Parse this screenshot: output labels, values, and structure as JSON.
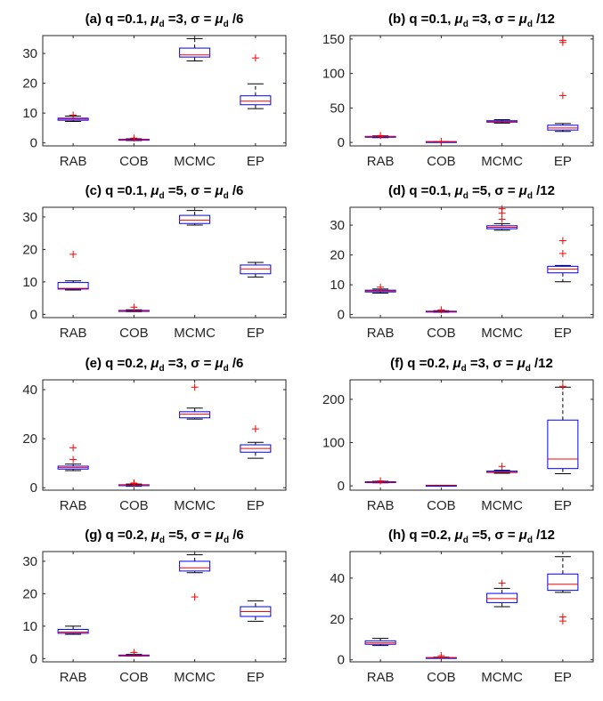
{
  "chart_data": [
    {
      "type": "box",
      "title_prefix": "(a) q =0.1, ",
      "title_mu": "μ",
      "title_mu_sub": "d",
      "title_mid": " =3, σ = ",
      "title_suffix": " /6",
      "categories": [
        "RAB",
        "COB",
        "MCMC",
        "EP"
      ],
      "ylim": [
        -1,
        36
      ],
      "yticks": [
        0,
        10,
        20,
        30
      ],
      "boxes": [
        {
          "low": 7.2,
          "q1": 7.6,
          "median": 8.0,
          "q3": 8.3,
          "high": 9.0,
          "outliers": [
            9.3
          ]
        },
        {
          "low": 0.8,
          "q1": 1.0,
          "median": 1.1,
          "q3": 1.2,
          "high": 1.4,
          "outliers": [
            1.6
          ]
        },
        {
          "low": 27.5,
          "q1": 28.8,
          "median": 29.5,
          "q3": 31.8,
          "high": 35.0,
          "outliers": []
        },
        {
          "low": 11.5,
          "q1": 12.8,
          "median": 14.0,
          "q3": 15.8,
          "high": 19.8,
          "outliers": [
            28.5
          ]
        }
      ]
    },
    {
      "type": "box",
      "title_prefix": "(b) q =0.1, ",
      "title_mu": "μ",
      "title_mu_sub": "d",
      "title_mid": " =3, σ = ",
      "title_suffix": " /12",
      "categories": [
        "RAB",
        "COB",
        "MCMC",
        "EP"
      ],
      "ylim": [
        -5,
        155
      ],
      "yticks": [
        0,
        50,
        100,
        150
      ],
      "boxes": [
        {
          "low": 7.0,
          "q1": 7.8,
          "median": 8.3,
          "q3": 8.8,
          "high": 9.5,
          "outliers": [
            10.0
          ]
        },
        {
          "low": 0.8,
          "q1": 1.0,
          "median": 1.1,
          "q3": 1.2,
          "high": 1.3,
          "outliers": [
            1.5
          ]
        },
        {
          "low": 28.0,
          "q1": 29.5,
          "median": 30.5,
          "q3": 31.5,
          "high": 33.0,
          "outliers": []
        },
        {
          "low": 16.0,
          "q1": 18.0,
          "median": 21.0,
          "q3": 25.0,
          "high": 27.5,
          "outliers": [
            68,
            145,
            148
          ]
        }
      ]
    },
    {
      "type": "box",
      "title_prefix": "(c) q =0.1, ",
      "title_mu": "μ",
      "title_mu_sub": "d",
      "title_mid": " =5, σ = ",
      "title_suffix": " /6",
      "categories": [
        "RAB",
        "COB",
        "MCMC",
        "EP"
      ],
      "ylim": [
        -1,
        33
      ],
      "yticks": [
        0,
        10,
        20,
        30
      ],
      "boxes": [
        {
          "low": 7.5,
          "q1": 7.8,
          "median": 8.0,
          "q3": 9.8,
          "high": 10.3,
          "outliers": [
            18.5
          ]
        },
        {
          "low": 0.8,
          "q1": 0.9,
          "median": 1.0,
          "q3": 1.2,
          "high": 1.4,
          "outliers": [
            2.2
          ]
        },
        {
          "low": 27.5,
          "q1": 28.0,
          "median": 29.0,
          "q3": 30.5,
          "high": 32.0,
          "outliers": []
        },
        {
          "low": 11.5,
          "q1": 12.5,
          "median": 14.0,
          "q3": 15.2,
          "high": 16.0,
          "outliers": []
        }
      ]
    },
    {
      "type": "box",
      "title_prefix": "(d) q =0.1, ",
      "title_mu": "μ",
      "title_mu_sub": "d",
      "title_mid": " =5, σ = ",
      "title_suffix": " /12",
      "categories": [
        "RAB",
        "COB",
        "MCMC",
        "EP"
      ],
      "ylim": [
        -1,
        36
      ],
      "yticks": [
        0,
        10,
        20,
        30
      ],
      "boxes": [
        {
          "low": 7.2,
          "q1": 7.6,
          "median": 7.9,
          "q3": 8.2,
          "high": 8.6,
          "outliers": [
            9.2
          ]
        },
        {
          "low": 0.8,
          "q1": 0.95,
          "median": 1.05,
          "q3": 1.15,
          "high": 1.3,
          "outliers": [
            1.6
          ]
        },
        {
          "low": 28.3,
          "q1": 28.8,
          "median": 29.3,
          "q3": 29.8,
          "high": 30.5,
          "outliers": [
            32.0,
            34.0,
            35.5
          ]
        },
        {
          "low": 11.0,
          "q1": 14.0,
          "median": 15.3,
          "q3": 16.2,
          "high": 16.5,
          "outliers": [
            20.5,
            24.8
          ]
        }
      ]
    },
    {
      "type": "box",
      "title_prefix": "(e) q =0.2, ",
      "title_mu": "μ",
      "title_mu_sub": "d",
      "title_mid": " =3, σ = ",
      "title_suffix": " /6",
      "categories": [
        "RAB",
        "COB",
        "MCMC",
        "EP"
      ],
      "ylim": [
        -1,
        44
      ],
      "yticks": [
        0,
        20,
        40
      ],
      "boxes": [
        {
          "low": 7.0,
          "q1": 7.6,
          "median": 8.2,
          "q3": 8.8,
          "high": 9.6,
          "outliers": [
            11.5,
            16.3
          ]
        },
        {
          "low": 0.6,
          "q1": 0.9,
          "median": 1.0,
          "q3": 1.2,
          "high": 1.5,
          "outliers": [
            1.7,
            1.9
          ]
        },
        {
          "low": 28.0,
          "q1": 28.5,
          "median": 30.0,
          "q3": 31.0,
          "high": 32.5,
          "outliers": [
            41.0
          ]
        },
        {
          "low": 12.0,
          "q1": 14.5,
          "median": 16.0,
          "q3": 17.5,
          "high": 18.5,
          "outliers": [
            24.0
          ]
        }
      ]
    },
    {
      "type": "box",
      "title_prefix": "(f) q =0.2, ",
      "title_mu": "μ",
      "title_mu_sub": "d",
      "title_mid": " =3, σ = ",
      "title_suffix": " /12",
      "categories": [
        "RAB",
        "COB",
        "MCMC",
        "EP"
      ],
      "ylim": [
        -10,
        245
      ],
      "yticks": [
        0,
        100,
        200
      ],
      "boxes": [
        {
          "low": 7.0,
          "q1": 8.0,
          "median": 8.5,
          "q3": 9.5,
          "high": 10.5,
          "outliers": [
            11.5
          ]
        },
        {
          "low": 0.8,
          "q1": 0.95,
          "median": 1.05,
          "q3": 1.15,
          "high": 1.3,
          "outliers": []
        },
        {
          "low": 29.0,
          "q1": 31.0,
          "median": 32.0,
          "q3": 34.0,
          "high": 36.0,
          "outliers": [
            45.0
          ]
        },
        {
          "low": 28.0,
          "q1": 40.0,
          "median": 62.0,
          "q3": 152.0,
          "high": 228.0,
          "outliers": [
            230.0
          ]
        }
      ]
    },
    {
      "type": "box",
      "title_prefix": "(g) q =0.2, ",
      "title_mu": "μ",
      "title_mu_sub": "d",
      "title_mid": " =5, σ = ",
      "title_suffix": " /6",
      "categories": [
        "RAB",
        "COB",
        "MCMC",
        "EP"
      ],
      "ylim": [
        -1,
        33
      ],
      "yticks": [
        0,
        10,
        20,
        30
      ],
      "boxes": [
        {
          "low": 7.5,
          "q1": 7.8,
          "median": 8.2,
          "q3": 9.0,
          "high": 10.0,
          "outliers": []
        },
        {
          "low": 0.8,
          "q1": 0.9,
          "median": 1.0,
          "q3": 1.1,
          "high": 1.3,
          "outliers": [
            1.9
          ]
        },
        {
          "low": 26.5,
          "q1": 27.0,
          "median": 28.0,
          "q3": 30.0,
          "high": 32.0,
          "outliers": [
            19.0
          ]
        },
        {
          "low": 11.5,
          "q1": 13.0,
          "median": 14.5,
          "q3": 16.0,
          "high": 17.8,
          "outliers": []
        }
      ]
    },
    {
      "type": "box",
      "title_prefix": "(h) q =0.2, ",
      "title_mu": "μ",
      "title_mu_sub": "d",
      "title_mid": " =5, σ = ",
      "title_suffix": " /12",
      "categories": [
        "RAB",
        "COB",
        "MCMC",
        "EP"
      ],
      "ylim": [
        -1,
        53
      ],
      "yticks": [
        0,
        20,
        40
      ],
      "boxes": [
        {
          "low": 7.0,
          "q1": 7.6,
          "median": 8.3,
          "q3": 9.3,
          "high": 10.5,
          "outliers": []
        },
        {
          "low": 0.8,
          "q1": 0.9,
          "median": 1.0,
          "q3": 1.1,
          "high": 1.3,
          "outliers": [
            2.0
          ]
        },
        {
          "low": 26.0,
          "q1": 28.0,
          "median": 30.0,
          "q3": 32.5,
          "high": 35.0,
          "outliers": [
            37.5
          ]
        },
        {
          "low": 33.0,
          "q1": 34.0,
          "median": 37.0,
          "q3": 42.0,
          "high": 50.5,
          "outliers": [
            19.0,
            21.0
          ]
        }
      ]
    }
  ]
}
